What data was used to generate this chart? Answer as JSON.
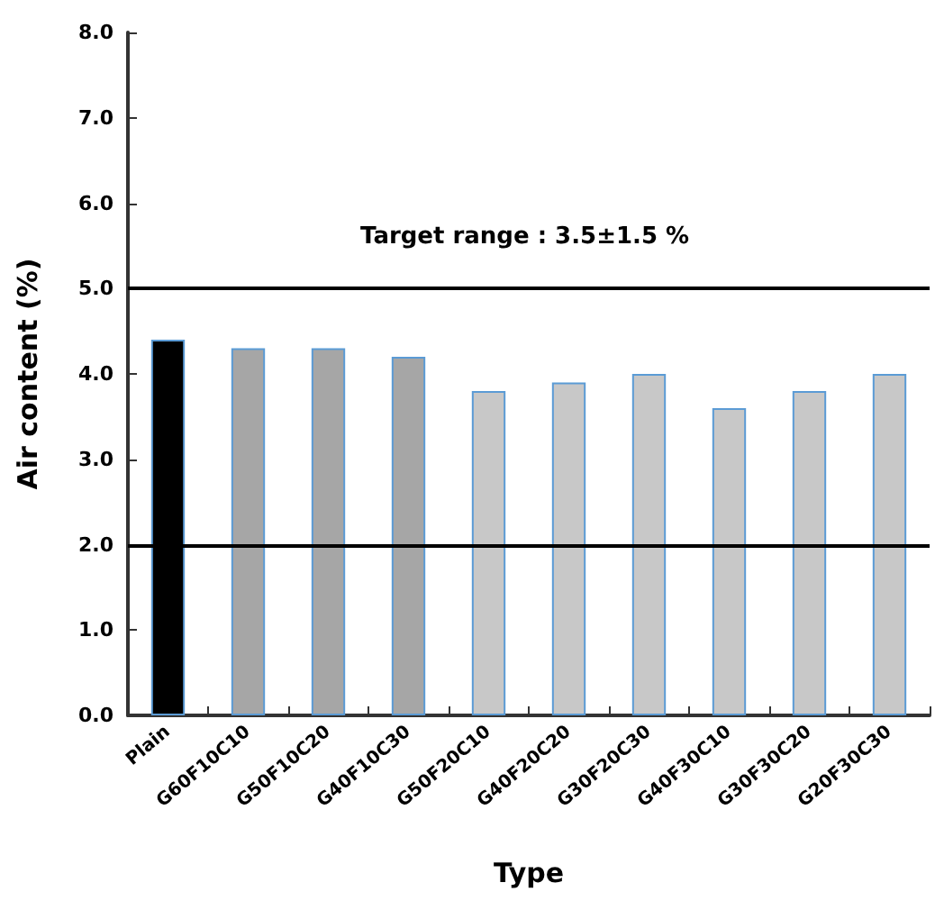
{
  "chart_data": {
    "type": "bar",
    "xlabel": "Type",
    "ylabel": "Air content (%)",
    "categories": [
      "Plain",
      "G60F10C10",
      "G50F10C20",
      "G40F10C30",
      "G50F20C10",
      "G40F20C20",
      "G30F20C30",
      "G40F30C10",
      "G30F30C20",
      "G20F30C30"
    ],
    "values": [
      4.4,
      4.3,
      4.3,
      4.2,
      3.8,
      3.9,
      4.0,
      3.6,
      3.8,
      4.0
    ],
    "colors": [
      "#000000",
      "#a6a6a6",
      "#a6a6a6",
      "#a6a6a6",
      "#c8c8c8",
      "#c8c8c8",
      "#c8c8c8",
      "#c8c8c8",
      "#c8c8c8",
      "#c8c8c8"
    ],
    "ylim": [
      0,
      8
    ],
    "yticks": [
      {
        "value": 0,
        "label": "0.0"
      },
      {
        "value": 1,
        "label": "1.0"
      },
      {
        "value": 2,
        "label": "2.0"
      },
      {
        "value": 3,
        "label": "3.0"
      },
      {
        "value": 4,
        "label": "4.0"
      },
      {
        "value": 5,
        "label": "5.0"
      },
      {
        "value": 6,
        "label": "6.0"
      },
      {
        "value": 7,
        "label": "7.0"
      },
      {
        "value": 8,
        "label": "8.0"
      }
    ],
    "annotations": [
      "Target range : 3.5±1.5 %"
    ],
    "ref_lines": [
      {
        "axis": "y",
        "value": 5,
        "label": null,
        "color": "#000000"
      },
      {
        "axis": "y",
        "value": 2,
        "label": null,
        "color": "#000000"
      }
    ],
    "grid": false
  }
}
